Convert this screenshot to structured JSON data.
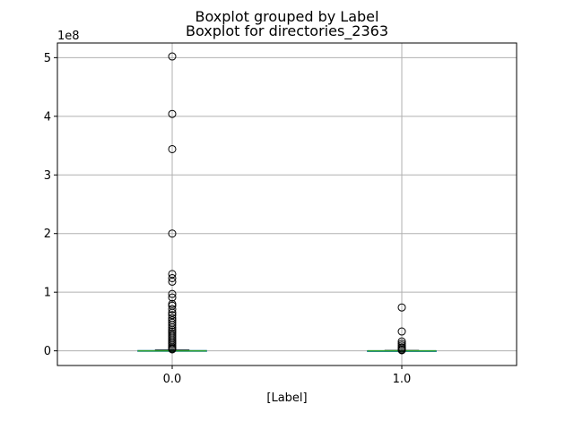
{
  "chart_data": {
    "type": "boxplot",
    "suptitle": "Boxplot grouped by Label",
    "title": "Boxplot for directories_2363",
    "xlabel": "[Label]",
    "ylabel": "",
    "y_offset_label": "1e8",
    "y_scale": 100000000,
    "ylim": [
      -25000000,
      525000000
    ],
    "grid": true,
    "y_ticks": [
      0,
      100000000,
      200000000,
      300000000,
      400000000,
      500000000
    ],
    "y_tick_labels": [
      "0",
      "1",
      "2",
      "3",
      "4",
      "5"
    ],
    "categories": [
      "0.0",
      "1.0"
    ],
    "boxes": [
      {
        "category": "0.0",
        "whisker_low": 0,
        "q1": 0,
        "median": 0,
        "q3": 600000,
        "whisker_high": 1500000,
        "outliers": [
          502000000,
          404000000,
          344000000,
          200000000,
          131000000,
          124000000,
          118000000,
          97000000,
          91000000,
          80000000,
          77000000,
          71000000,
          65000000,
          61000000,
          56000000,
          52000000,
          48000000,
          44000000,
          40000000,
          36000000,
          33000000,
          30000000,
          27000000,
          24000000,
          21000000,
          18000000,
          15000000,
          12000000,
          9000000,
          6000000,
          4000000,
          2500000
        ]
      },
      {
        "category": "1.0",
        "whisker_low": 0,
        "q1": 0,
        "median": 0,
        "q3": 300000,
        "whisker_high": 700000,
        "outliers": [
          74000000,
          33000000,
          16000000,
          12000000,
          9000000,
          6000000,
          4000000,
          2000000,
          1000000
        ]
      }
    ],
    "colors": {
      "median": "#2ca02c",
      "box": "#1f77b4",
      "grid": "#b0b0b0",
      "outlier": "#000000"
    }
  }
}
